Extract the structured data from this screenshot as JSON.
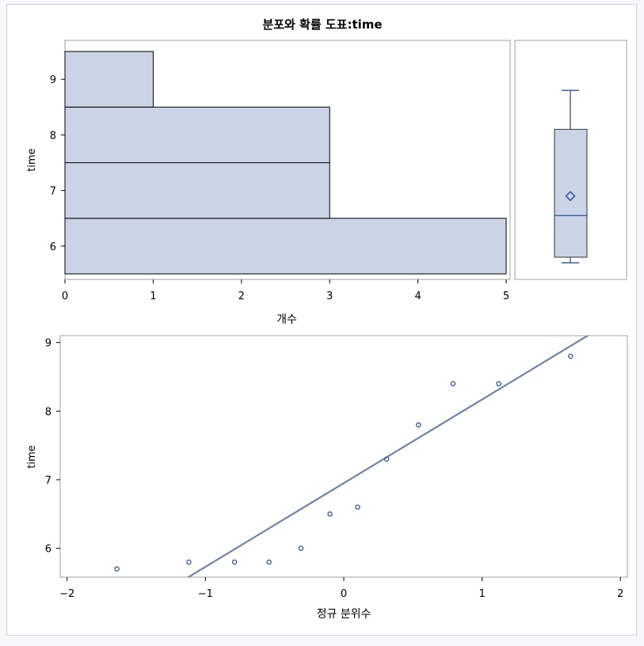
{
  "title": "분포와 확률 도표:time",
  "colors": {
    "bar_fill": "#cad4e6",
    "bar_stroke": "#000000",
    "box_stroke": "#2c4fa3",
    "marker": "#2c4fa3",
    "fit_line": "#6d82ab",
    "frame": "#a0a0a0"
  },
  "chart_data": [
    {
      "type": "bar",
      "orientation": "horizontal",
      "categories": [
        "6",
        "7",
        "8",
        "9"
      ],
      "values": [
        5,
        3,
        3,
        1
      ],
      "bins": [
        [
          5.5,
          6.5
        ],
        [
          6.5,
          7.5
        ],
        [
          7.5,
          8.5
        ],
        [
          8.5,
          9.5
        ]
      ],
      "xlabel": "개수",
      "ylabel": "time",
      "xlim": [
        0,
        5
      ],
      "ylim": [
        5.4,
        9.7
      ],
      "xticks": [
        0,
        1,
        2,
        3,
        4,
        5
      ],
      "yticks": [
        6,
        7,
        8,
        9
      ]
    },
    {
      "type": "box",
      "min": 5.7,
      "q1": 5.8,
      "median": 6.55,
      "mean": 6.9,
      "q3": 8.1,
      "max": 8.8
    },
    {
      "type": "scatter",
      "x": [
        -1.64,
        -1.12,
        -0.79,
        -0.54,
        -0.31,
        -0.1,
        0.1,
        0.31,
        0.54,
        0.79,
        1.12,
        1.64
      ],
      "y": [
        5.7,
        5.8,
        5.8,
        5.8,
        6.0,
        6.5,
        6.6,
        7.3,
        7.8,
        8.4,
        8.4,
        8.8
      ],
      "fit_line": {
        "intercept": 6.95,
        "slope": 1.22
      },
      "xlabel": "정규 분위수",
      "ylabel": "time",
      "xlim": [
        -2.05,
        2.05
      ],
      "ylim": [
        5.58,
        9.1
      ],
      "xticks": [
        -2,
        -1,
        0,
        1,
        2
      ],
      "yticks": [
        6,
        7,
        8,
        9
      ]
    }
  ]
}
